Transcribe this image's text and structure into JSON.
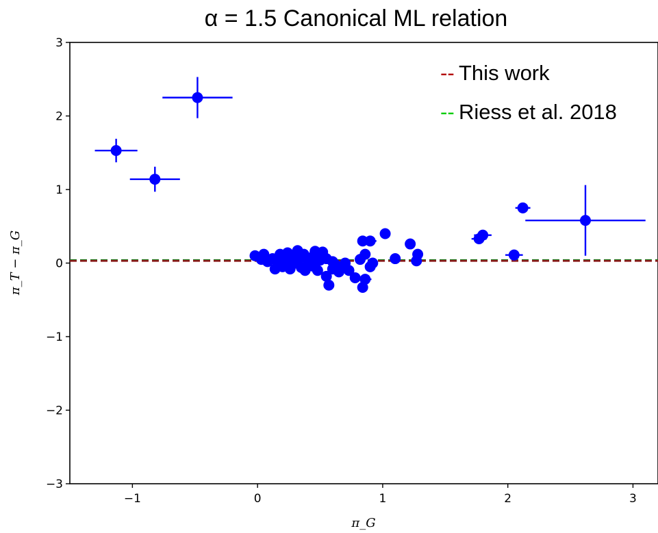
{
  "chart_data": {
    "type": "scatter",
    "title": "α = 1.5  Canonical ML relation",
    "xlabel": "π_G",
    "ylabel": "π_T − π_G",
    "xlim": [
      -1.5,
      3.2
    ],
    "ylim": [
      -3,
      3
    ],
    "xticks": [
      -1,
      0,
      1,
      2,
      3
    ],
    "yticks": [
      -3,
      -2,
      -1,
      0,
      1,
      2,
      3
    ],
    "xtick_labels": [
      "−1",
      "0",
      "1",
      "2",
      "3"
    ],
    "ytick_labels": [
      "−3",
      "−2",
      "−1",
      "0",
      "1",
      "2",
      "3"
    ],
    "grid": false,
    "legend_position": "top-right",
    "legend": [
      {
        "dash": "--",
        "label": "This work",
        "color": "#b30000"
      },
      {
        "dash": "--",
        "label": "Riess et al. 2018",
        "color": "#00cc00"
      }
    ],
    "reference_lines": [
      {
        "name": "This work",
        "y": 0.03,
        "color": "#8b1a1a",
        "style": "dashed"
      },
      {
        "name": "Riess et al. 2018",
        "y": 0.04,
        "color": "#1f7a1f",
        "style": "dashed"
      }
    ],
    "marker_color": "#0000ff",
    "points": [
      {
        "x": -1.13,
        "y": 1.53,
        "xerr": 0.17,
        "yerr": 0.16
      },
      {
        "x": -0.82,
        "y": 1.14,
        "xerr": 0.2,
        "yerr": 0.17
      },
      {
        "x": -0.48,
        "y": 2.25,
        "xerr": 0.28,
        "yerr": 0.28
      },
      {
        "x": 2.62,
        "y": 0.58,
        "xerr": 0.48,
        "yerr": 0.48
      },
      {
        "x": 2.12,
        "y": 0.75,
        "xerr": 0.06,
        "yerr": 0.03
      },
      {
        "x": 2.05,
        "y": 0.11,
        "xerr": 0.07,
        "yerr": 0.02
      },
      {
        "x": 1.8,
        "y": 0.38,
        "xerr": 0.07,
        "yerr": 0.04
      },
      {
        "x": 1.77,
        "y": 0.33,
        "xerr": 0.06,
        "yerr": 0.04
      },
      {
        "x": 1.28,
        "y": 0.12
      },
      {
        "x": 1.27,
        "y": 0.03
      },
      {
        "x": 1.22,
        "y": 0.26
      },
      {
        "x": 1.1,
        "y": 0.06
      },
      {
        "x": 1.02,
        "y": 0.4
      },
      {
        "x": 0.9,
        "y": 0.3,
        "xerr": 0.05
      },
      {
        "x": 0.84,
        "y": 0.3
      },
      {
        "x": 0.92,
        "y": 0.0
      },
      {
        "x": 0.9,
        "y": -0.05
      },
      {
        "x": 0.86,
        "y": 0.12
      },
      {
        "x": 0.82,
        "y": 0.05
      },
      {
        "x": 0.86,
        "y": -0.22,
        "xerr": 0.05
      },
      {
        "x": 0.84,
        "y": -0.33
      },
      {
        "x": 0.78,
        "y": -0.2
      },
      {
        "x": 0.73,
        "y": -0.1
      },
      {
        "x": 0.68,
        "y": -0.05
      },
      {
        "x": 0.65,
        "y": -0.12
      },
      {
        "x": 0.6,
        "y": -0.08
      },
      {
        "x": 0.57,
        "y": -0.3
      },
      {
        "x": 0.55,
        "y": -0.18
      },
      {
        "x": 0.6,
        "y": 0.02
      },
      {
        "x": 0.52,
        "y": 0.15
      },
      {
        "x": 0.5,
        "y": 0.04
      },
      {
        "x": 0.48,
        "y": -0.1
      },
      {
        "x": 0.45,
        "y": 0.1
      },
      {
        "x": 0.42,
        "y": -0.02
      },
      {
        "x": 0.4,
        "y": 0.05
      },
      {
        "x": 0.37,
        "y": 0.12
      },
      {
        "x": 0.35,
        "y": -0.06
      },
      {
        "x": 0.32,
        "y": 0.17
      },
      {
        "x": 0.3,
        "y": 0.0
      },
      {
        "x": 0.28,
        "y": 0.08
      },
      {
        "x": 0.26,
        "y": -0.08
      },
      {
        "x": 0.24,
        "y": 0.14
      },
      {
        "x": 0.22,
        "y": 0.03
      },
      {
        "x": 0.2,
        "y": -0.05
      },
      {
        "x": 0.18,
        "y": 0.12
      },
      {
        "x": 0.16,
        "y": 0.02
      },
      {
        "x": 0.14,
        "y": -0.08
      },
      {
        "x": 0.12,
        "y": 0.06
      },
      {
        "x": 0.08,
        "y": 0.02
      },
      {
        "x": 0.05,
        "y": 0.12
      },
      {
        "x": 0.03,
        "y": 0.05
      },
      {
        "x": -0.02,
        "y": 0.1
      },
      {
        "x": 0.38,
        "y": -0.1
      },
      {
        "x": 0.46,
        "y": 0.16
      },
      {
        "x": 0.55,
        "y": 0.06
      },
      {
        "x": 0.7,
        "y": 0.0
      },
      {
        "x": 0.62,
        "y": -0.02
      },
      {
        "x": 0.44,
        "y": -0.04
      },
      {
        "x": 0.33,
        "y": 0.06
      }
    ]
  }
}
